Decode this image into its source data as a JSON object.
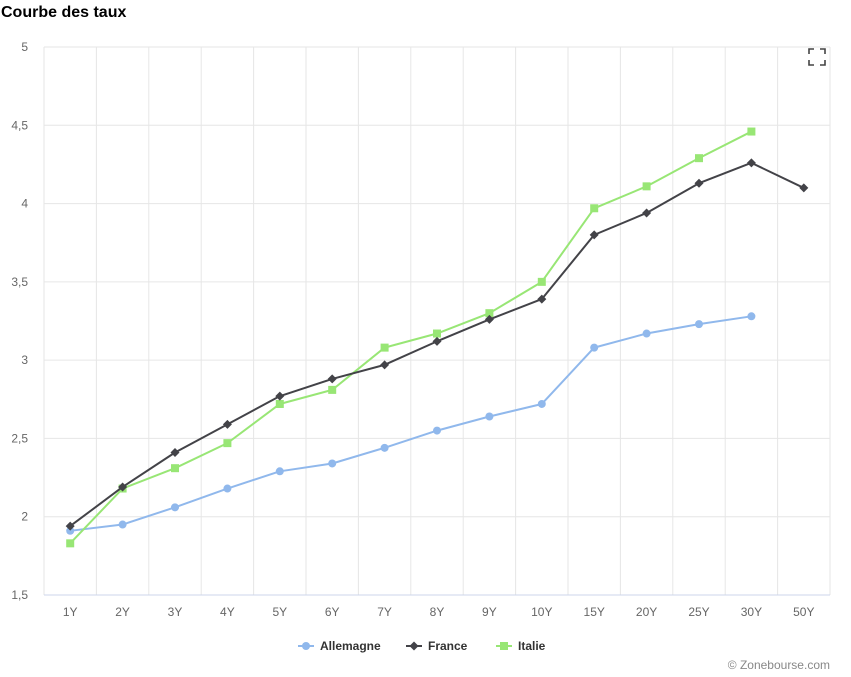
{
  "header": {
    "title": "Courbe des taux"
  },
  "footer": {
    "credit": "© Zonebourse.com"
  },
  "icons": {
    "fullscreen": "fullscreen-icon"
  },
  "chart_data": {
    "type": "line",
    "title": "Courbe des taux",
    "categories": [
      "1Y",
      "2Y",
      "3Y",
      "4Y",
      "5Y",
      "6Y",
      "7Y",
      "8Y",
      "9Y",
      "10Y",
      "15Y",
      "20Y",
      "25Y",
      "30Y",
      "50Y"
    ],
    "ylim": [
      1.5,
      5
    ],
    "yticks": [
      1.5,
      2,
      2.5,
      3,
      3.5,
      4,
      4.5,
      5
    ],
    "ytick_labels": [
      "1,5",
      "2",
      "2,5",
      "3",
      "3,5",
      "4",
      "4,5",
      "5"
    ],
    "grid": true,
    "legend_position": "bottom",
    "series": [
      {
        "name": "Allemagne",
        "color": "#90b8ec",
        "marker": "circle",
        "values": [
          1.91,
          1.95,
          2.06,
          2.18,
          2.29,
          2.34,
          2.44,
          2.55,
          2.64,
          2.72,
          3.08,
          3.17,
          3.23,
          3.28,
          null
        ]
      },
      {
        "name": "France",
        "color": "#434348",
        "marker": "diamond",
        "values": [
          1.94,
          2.19,
          2.41,
          2.59,
          2.77,
          2.88,
          2.97,
          3.12,
          3.26,
          3.39,
          3.8,
          3.94,
          4.13,
          4.26,
          4.1
        ]
      },
      {
        "name": "Italie",
        "color": "#98e675",
        "marker": "square",
        "values": [
          1.83,
          2.18,
          2.31,
          2.47,
          2.72,
          2.81,
          3.08,
          3.17,
          3.3,
          3.5,
          3.97,
          4.11,
          4.29,
          4.46,
          null
        ]
      }
    ]
  }
}
